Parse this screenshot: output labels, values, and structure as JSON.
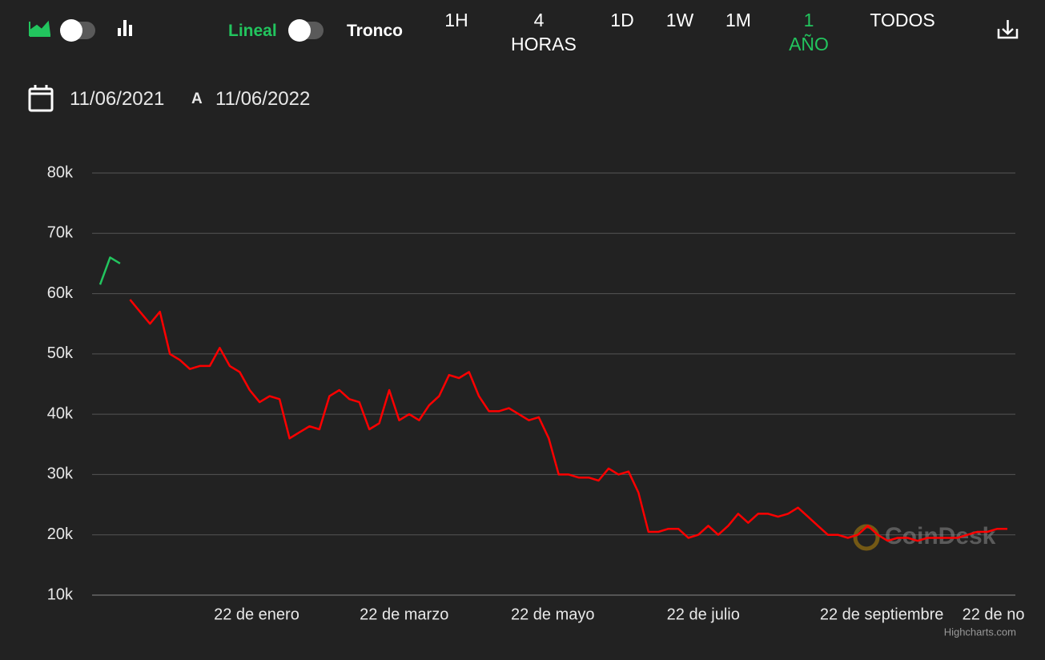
{
  "toolbar": {
    "scale_left": "Lineal",
    "scale_right": "Tronco",
    "ranges": [
      "1H",
      "4 HORAS",
      "1D",
      "1W",
      "1M",
      "1 AÑO",
      "TODOS"
    ],
    "active_range": 5
  },
  "date_range": {
    "from": "11/06/2021",
    "separator": "A",
    "to": "11/06/2022"
  },
  "chart_data": {
    "type": "line",
    "watermark": "CoinDesk",
    "credits": "Highcharts.com",
    "ylim": [
      10000,
      80000
    ],
    "yticks": [
      {
        "value": 10000,
        "label": "10k"
      },
      {
        "value": 20000,
        "label": "20k"
      },
      {
        "value": 30000,
        "label": "30k"
      },
      {
        "value": 40000,
        "label": "40k"
      },
      {
        "value": 50000,
        "label": "50k"
      },
      {
        "value": 60000,
        "label": "60k"
      },
      {
        "value": 70000,
        "label": "70k"
      },
      {
        "value": 80000,
        "label": "80k"
      }
    ],
    "xticks": [
      {
        "value": 15.7,
        "label": "22 de enero"
      },
      {
        "value": 30.5,
        "label": "22 de marzo"
      },
      {
        "value": 45.4,
        "label": "22 de mayo"
      },
      {
        "value": 60.5,
        "label": "22 de julio"
      },
      {
        "value": 78.4,
        "label": "22 de septiembre"
      },
      {
        "value": 89.6,
        "label": "22 de no"
      }
    ],
    "grid": true,
    "series": [
      {
        "name": "up",
        "color": "#22c55e",
        "values": [
          61500,
          66000,
          65000,
          null,
          null,
          null,
          null,
          null,
          null,
          null,
          null,
          null,
          null,
          null,
          null,
          null,
          null,
          null,
          null,
          null,
          null,
          null,
          null,
          null,
          null,
          null,
          null,
          null,
          null,
          null,
          null,
          null,
          null,
          null,
          null,
          null,
          null,
          null,
          null,
          null,
          null,
          null,
          null,
          null,
          null,
          null,
          null,
          null,
          null,
          null,
          null,
          null,
          null,
          null,
          null,
          null,
          null,
          null,
          null,
          null,
          null,
          null,
          null,
          null,
          null,
          null,
          null,
          null,
          null,
          null,
          null,
          null,
          null,
          null,
          null,
          null,
          null,
          null,
          null,
          null,
          null,
          null,
          null,
          null,
          null,
          null,
          null,
          null,
          null,
          null,
          null,
          null
        ]
      },
      {
        "name": "down",
        "color": "#ff0000",
        "values": [
          null,
          null,
          null,
          59000,
          57000,
          55000,
          57000,
          50000,
          49000,
          47500,
          48000,
          48000,
          51000,
          48000,
          47000,
          44000,
          42000,
          43000,
          42500,
          36000,
          37000,
          38000,
          37500,
          43000,
          44000,
          42500,
          42000,
          37500,
          38500,
          44000,
          39000,
          40000,
          39000,
          41500,
          43000,
          46500,
          46000,
          47000,
          43000,
          40500,
          40500,
          41000,
          40000,
          39000,
          39500,
          36000,
          30000,
          30000,
          29500,
          29500,
          29000,
          31000,
          30000,
          30500,
          27000,
          20500,
          20500,
          21000,
          21000,
          19500,
          20000,
          21500,
          20000,
          21500,
          23500,
          22000,
          23500,
          23500,
          23000,
          23500,
          24500,
          23000,
          21500,
          20000,
          20000,
          19500,
          20000,
          21500,
          20000,
          19000,
          19500,
          19500,
          19000,
          19500,
          19500,
          19500,
          19500,
          20000,
          20500,
          20500,
          21000,
          21000
        ]
      }
    ]
  }
}
